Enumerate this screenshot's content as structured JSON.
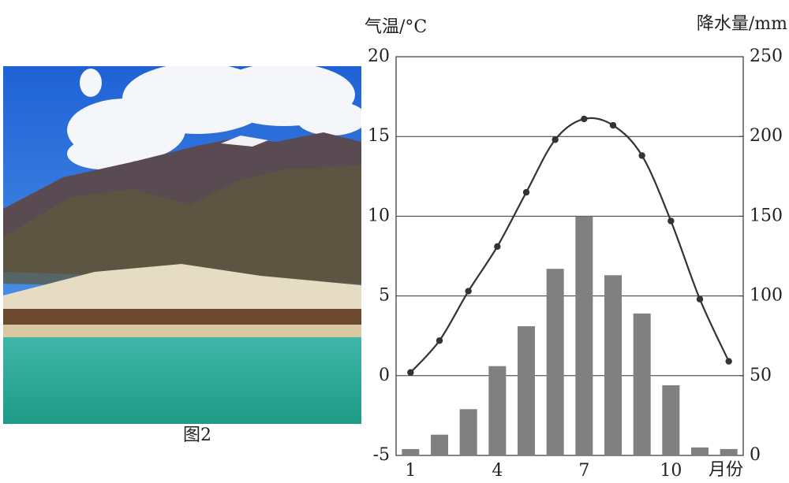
{
  "figure_caption": "图2",
  "chart_data": {
    "type": "combo",
    "ylabel": "气温/°C",
    "y2label": "降水量/mm",
    "xlabel": "月份",
    "categories": [
      1,
      null,
      null,
      4,
      null,
      null,
      7,
      null,
      null,
      10,
      null,
      null
    ],
    "ylim": [
      -5,
      20
    ],
    "yticks": [
      -5,
      0,
      5,
      10,
      15,
      20
    ],
    "y2lim": [
      0,
      250
    ],
    "y2ticks": [
      0,
      50,
      100,
      150,
      200,
      250
    ],
    "grid": true,
    "series": [
      {
        "type": "bar",
        "axis": "y2",
        "color": "#808080",
        "values": [
          4,
          13,
          29,
          56,
          81,
          117,
          150,
          113,
          89,
          44,
          5,
          4
        ]
      },
      {
        "type": "line",
        "axis": "y",
        "color": "#333333",
        "values": [
          0.2,
          2.2,
          5.3,
          8.1,
          11.5,
          14.8,
          16.1,
          15.7,
          13.8,
          9.7,
          4.8,
          0.9
        ]
      }
    ]
  }
}
